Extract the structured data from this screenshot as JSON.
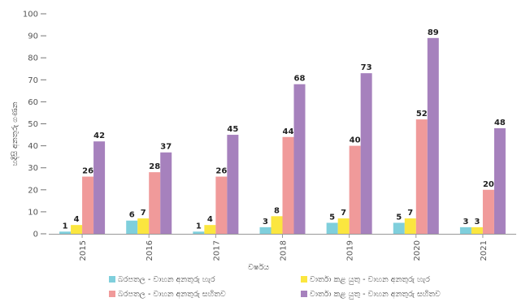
{
  "chart_data": {
    "type": "bar",
    "categories": [
      "2015",
      "2016",
      "2017",
      "2018",
      "2019",
      "2020",
      "2021"
    ],
    "series": [
      {
        "name": "බරපතල - වාහන අනතුරු හැර",
        "color": "#7fcfdc",
        "values": [
          1,
          6,
          1,
          3,
          5,
          5,
          3
        ]
      },
      {
        "name": "වාර්තා කළ යුතු  - වාහන අනතුරු හැර",
        "color": "#fbe63f",
        "values": [
          4,
          7,
          4,
          8,
          7,
          7,
          3
        ]
      },
      {
        "name": "බරපතල - වාහන අනතුරු සහිතව",
        "color": "#f09a9a",
        "values": [
          26,
          28,
          26,
          44,
          40,
          52,
          20
        ]
      },
      {
        "name": "වාර්තා කළ යුතු  - වාහන අනතුරු සහිතව",
        "color": "#a681bd",
        "values": [
          42,
          37,
          45,
          68,
          73,
          89,
          48
        ]
      }
    ],
    "xlabel": "වර්ෂය",
    "ylabel": "හදිසි අනතුරු ගණන",
    "ylim": [
      0,
      100
    ],
    "yticks": [
      0,
      10,
      20,
      30,
      40,
      50,
      60,
      70,
      80,
      90,
      100
    ],
    "grid": false,
    "legend_position": "bottom"
  }
}
